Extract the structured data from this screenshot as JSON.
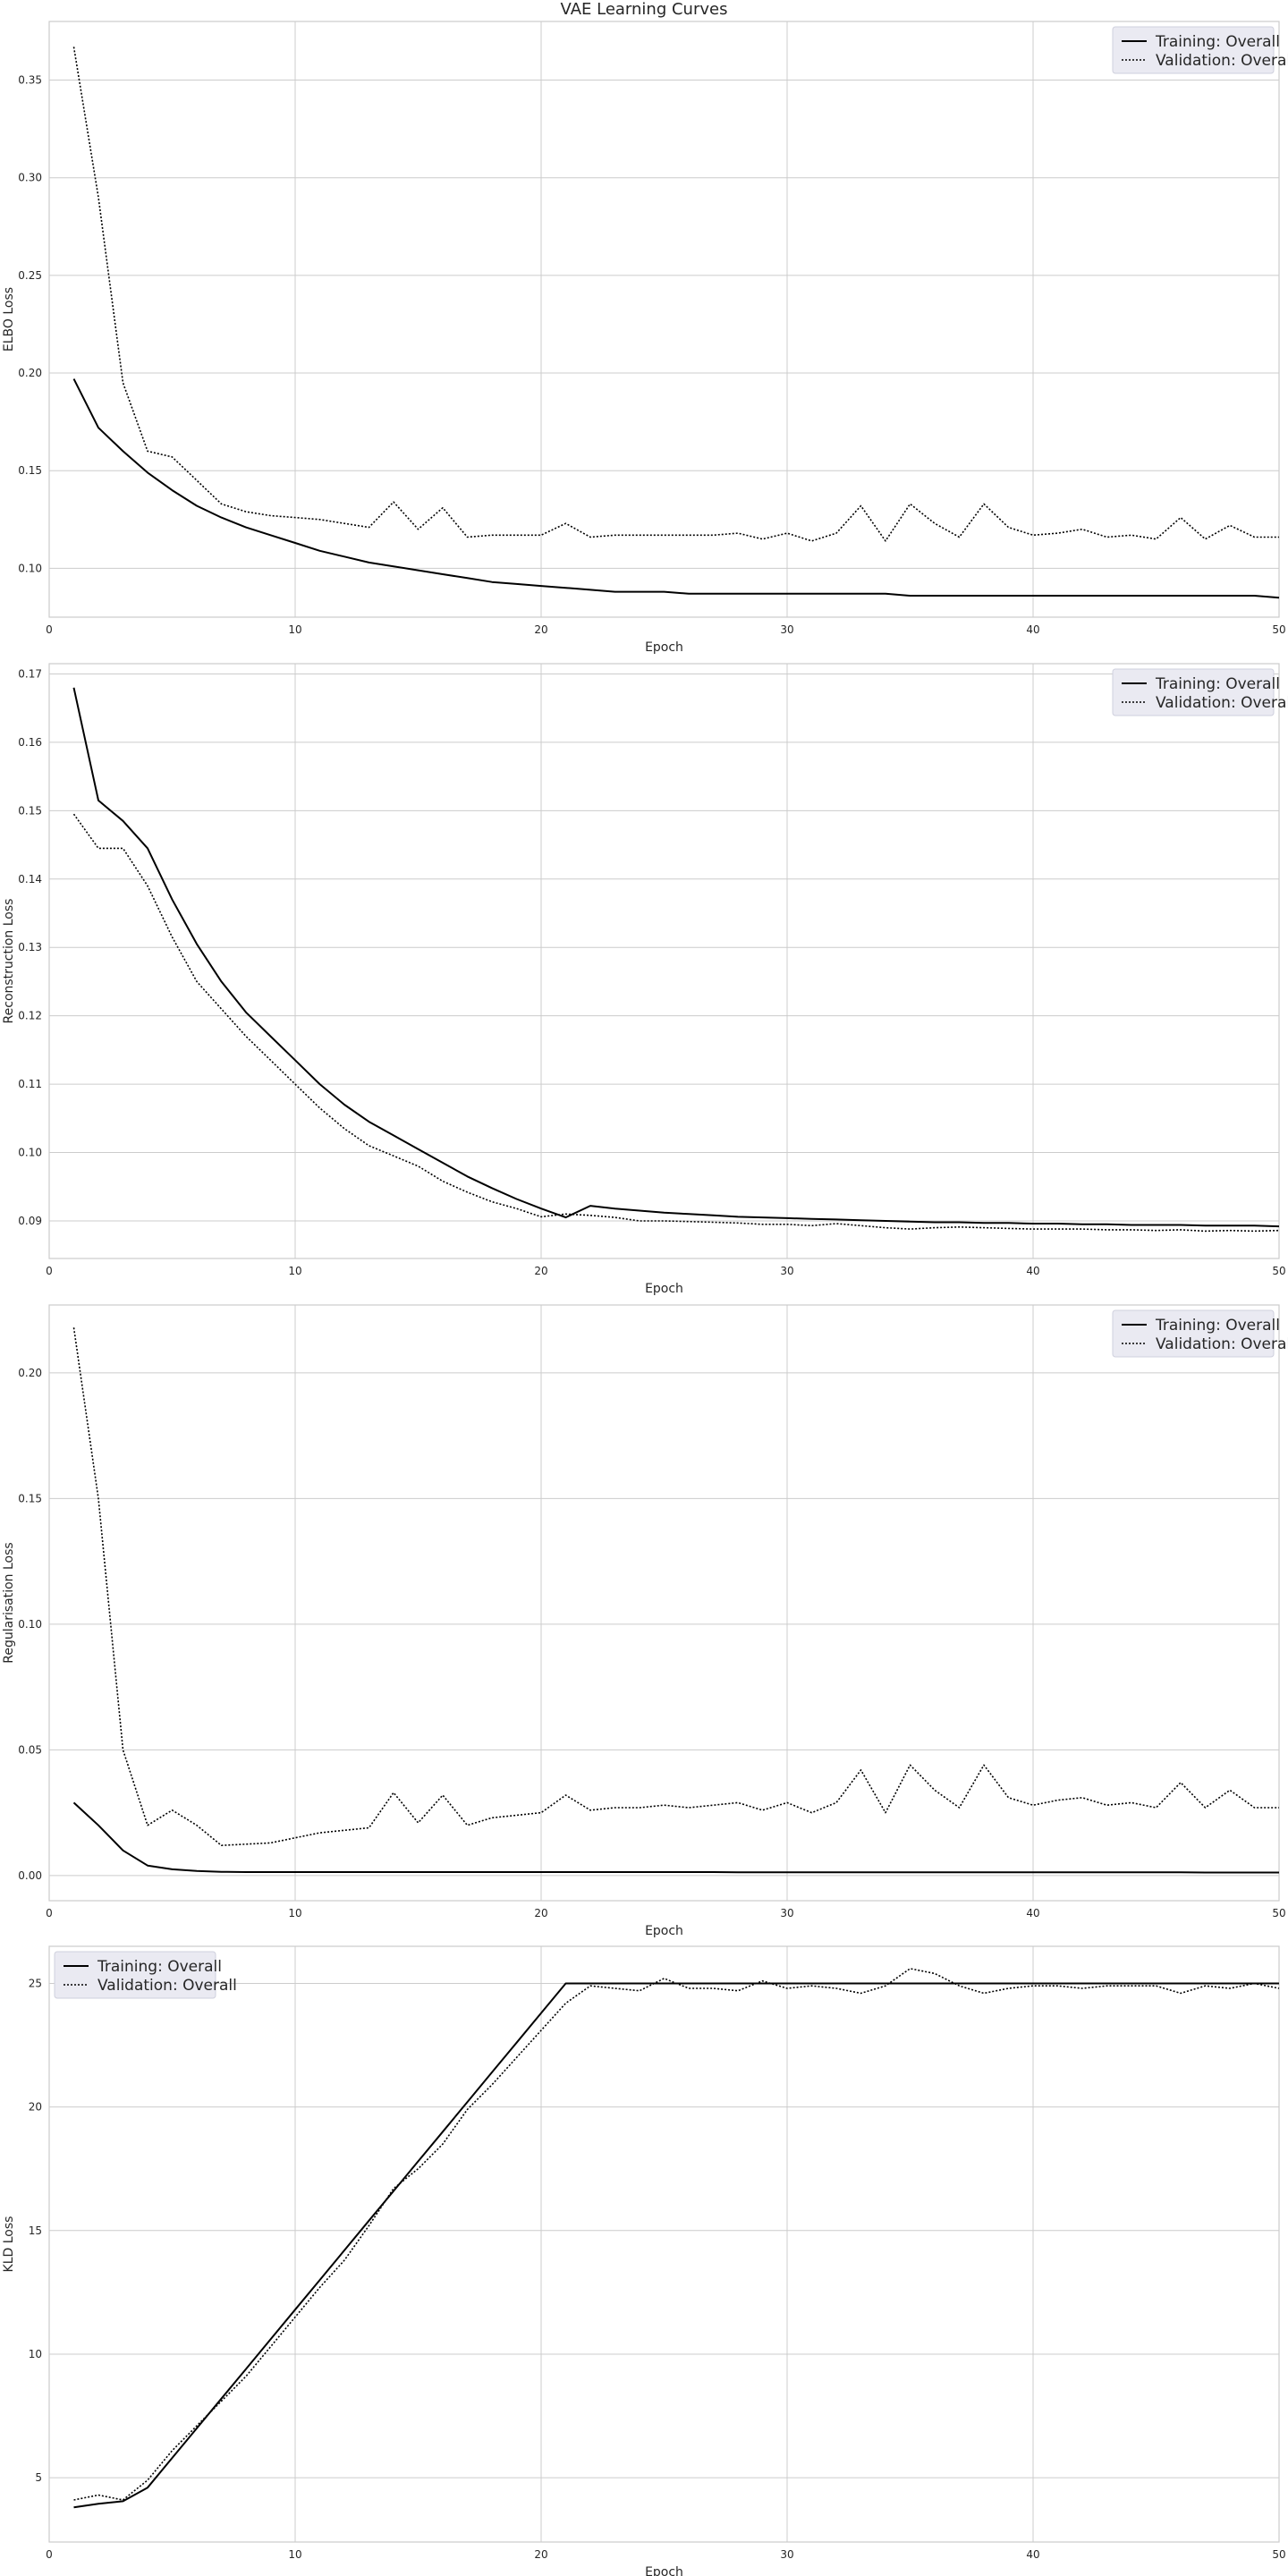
{
  "title": "VAE Learning Curves",
  "chart_data": [
    {
      "type": "line",
      "xlabel": "Epoch",
      "ylabel": "ELBO Loss",
      "xlim": [
        0,
        50
      ],
      "ylim": [
        0.075,
        0.38
      ],
      "xticks": [
        0,
        10,
        20,
        30,
        40,
        50
      ],
      "yticks": [
        0.1,
        0.15,
        0.2,
        0.25,
        0.3,
        0.35
      ],
      "tick_decimals": 2,
      "grid": true,
      "legend_position": "top-right",
      "x": [
        1,
        2,
        3,
        4,
        5,
        6,
        7,
        8,
        9,
        10,
        11,
        12,
        13,
        14,
        15,
        16,
        17,
        18,
        19,
        20,
        21,
        22,
        23,
        24,
        25,
        26,
        27,
        28,
        29,
        30,
        31,
        32,
        33,
        34,
        35,
        36,
        37,
        38,
        39,
        40,
        41,
        42,
        43,
        44,
        45,
        46,
        47,
        48,
        49,
        50
      ],
      "series": [
        {
          "name": "Training: Overall",
          "style": "solid",
          "values": [
            0.197,
            0.172,
            0.16,
            0.149,
            0.14,
            0.132,
            0.126,
            0.121,
            0.117,
            0.113,
            0.109,
            0.106,
            0.103,
            0.101,
            0.099,
            0.097,
            0.095,
            0.093,
            0.092,
            0.091,
            0.09,
            0.089,
            0.088,
            0.088,
            0.088,
            0.087,
            0.087,
            0.087,
            0.087,
            0.087,
            0.087,
            0.087,
            0.087,
            0.087,
            0.086,
            0.086,
            0.086,
            0.086,
            0.086,
            0.086,
            0.086,
            0.086,
            0.086,
            0.086,
            0.086,
            0.086,
            0.086,
            0.086,
            0.086,
            0.085
          ]
        },
        {
          "name": "Validation: Overall",
          "style": "dotted",
          "values": [
            0.367,
            0.29,
            0.195,
            0.16,
            0.157,
            0.145,
            0.133,
            0.129,
            0.127,
            0.126,
            0.125,
            0.123,
            0.121,
            0.134,
            0.12,
            0.131,
            0.116,
            0.117,
            0.117,
            0.117,
            0.123,
            0.116,
            0.117,
            0.117,
            0.117,
            0.117,
            0.117,
            0.118,
            0.115,
            0.118,
            0.114,
            0.118,
            0.132,
            0.114,
            0.133,
            0.123,
            0.116,
            0.133,
            0.121,
            0.117,
            0.118,
            0.12,
            0.116,
            0.117,
            0.115,
            0.126,
            0.115,
            0.122,
            0.116,
            0.116
          ]
        }
      ]
    },
    {
      "type": "line",
      "xlabel": "Epoch",
      "ylabel": "Reconstruction Loss",
      "xlim": [
        0,
        50
      ],
      "ylim": [
        0.0845,
        0.1715
      ],
      "xticks": [
        0,
        10,
        20,
        30,
        40,
        50
      ],
      "yticks": [
        0.09,
        0.1,
        0.11,
        0.12,
        0.13,
        0.14,
        0.15,
        0.16,
        0.17
      ],
      "tick_decimals": 2,
      "grid": true,
      "legend_position": "top-right",
      "x": [
        1,
        2,
        3,
        4,
        5,
        6,
        7,
        8,
        9,
        10,
        11,
        12,
        13,
        14,
        15,
        16,
        17,
        18,
        19,
        20,
        21,
        22,
        23,
        24,
        25,
        26,
        27,
        28,
        29,
        30,
        31,
        32,
        33,
        34,
        35,
        36,
        37,
        38,
        39,
        40,
        41,
        42,
        43,
        44,
        45,
        46,
        47,
        48,
        49,
        50
      ],
      "series": [
        {
          "name": "Training: Overall",
          "style": "solid",
          "values": [
            0.168,
            0.1515,
            0.1485,
            0.1445,
            0.137,
            0.1305,
            0.125,
            0.1205,
            0.117,
            0.1135,
            0.11,
            0.107,
            0.1045,
            0.1025,
            0.1005,
            0.0985,
            0.0965,
            0.0948,
            0.0932,
            0.0918,
            0.0905,
            0.0922,
            0.0918,
            0.0915,
            0.0912,
            0.091,
            0.0908,
            0.0906,
            0.0905,
            0.0904,
            0.0903,
            0.0902,
            0.0901,
            0.09,
            0.0899,
            0.0898,
            0.0898,
            0.0897,
            0.0897,
            0.0896,
            0.0896,
            0.0895,
            0.0895,
            0.0894,
            0.0894,
            0.0894,
            0.0893,
            0.0893,
            0.0893,
            0.0892
          ]
        },
        {
          "name": "Validation: Overall",
          "style": "dotted",
          "values": [
            0.1495,
            0.1445,
            0.1445,
            0.139,
            0.1315,
            0.125,
            0.121,
            0.117,
            0.1135,
            0.11,
            0.1065,
            0.1035,
            0.101,
            0.0995,
            0.098,
            0.0958,
            0.0942,
            0.0928,
            0.0918,
            0.0906,
            0.091,
            0.0908,
            0.0905,
            0.09,
            0.09,
            0.0899,
            0.0898,
            0.0897,
            0.0895,
            0.0895,
            0.0893,
            0.0896,
            0.0893,
            0.089,
            0.0888,
            0.089,
            0.0891,
            0.089,
            0.0889,
            0.0888,
            0.0888,
            0.0888,
            0.0887,
            0.0887,
            0.0886,
            0.0887,
            0.0885,
            0.0886,
            0.0885,
            0.0886
          ]
        }
      ]
    },
    {
      "type": "line",
      "xlabel": "Epoch",
      "ylabel": "Regularisation Loss",
      "xlim": [
        0,
        50
      ],
      "ylim": [
        -0.01,
        0.227
      ],
      "xticks": [
        0,
        10,
        20,
        30,
        40,
        50
      ],
      "yticks": [
        0.0,
        0.05,
        0.1,
        0.15,
        0.2
      ],
      "tick_decimals": 2,
      "grid": true,
      "legend_position": "top-right",
      "x": [
        1,
        2,
        3,
        4,
        5,
        6,
        7,
        8,
        9,
        10,
        11,
        12,
        13,
        14,
        15,
        16,
        17,
        18,
        19,
        20,
        21,
        22,
        23,
        24,
        25,
        26,
        27,
        28,
        29,
        30,
        31,
        32,
        33,
        34,
        35,
        36,
        37,
        38,
        39,
        40,
        41,
        42,
        43,
        44,
        45,
        46,
        47,
        48,
        49,
        50
      ],
      "series": [
        {
          "name": "Training: Overall",
          "style": "solid",
          "values": [
            0.029,
            0.02,
            0.01,
            0.004,
            0.0025,
            0.0018,
            0.0015,
            0.0014,
            0.0014,
            0.0014,
            0.0014,
            0.0014,
            0.0014,
            0.0014,
            0.0014,
            0.0014,
            0.0014,
            0.0014,
            0.0014,
            0.0014,
            0.0014,
            0.0014,
            0.0014,
            0.0014,
            0.0014,
            0.0014,
            0.0014,
            0.0013,
            0.0013,
            0.0013,
            0.0013,
            0.0013,
            0.0013,
            0.0013,
            0.0013,
            0.0013,
            0.0013,
            0.0013,
            0.0013,
            0.0013,
            0.0013,
            0.0013,
            0.0013,
            0.0013,
            0.0013,
            0.0013,
            0.0012,
            0.0012,
            0.0012,
            0.0012
          ]
        },
        {
          "name": "Validation: Overall",
          "style": "dotted",
          "values": [
            0.218,
            0.15,
            0.05,
            0.02,
            0.026,
            0.02,
            0.012,
            0.0125,
            0.013,
            0.015,
            0.017,
            0.018,
            0.019,
            0.033,
            0.021,
            0.032,
            0.02,
            0.023,
            0.024,
            0.025,
            0.032,
            0.026,
            0.027,
            0.027,
            0.028,
            0.027,
            0.028,
            0.029,
            0.026,
            0.029,
            0.025,
            0.029,
            0.042,
            0.025,
            0.044,
            0.034,
            0.027,
            0.044,
            0.031,
            0.028,
            0.03,
            0.031,
            0.028,
            0.029,
            0.027,
            0.037,
            0.027,
            0.034,
            0.027,
            0.027
          ]
        }
      ]
    },
    {
      "type": "line",
      "xlabel": "Epoch",
      "ylabel": "KLD Loss",
      "xlim": [
        0,
        50
      ],
      "ylim": [
        2.4,
        26.5
      ],
      "xticks": [
        0,
        10,
        20,
        30,
        40,
        50
      ],
      "yticks": [
        5,
        10,
        15,
        20,
        25
      ],
      "tick_decimals": 0,
      "grid": true,
      "legend_position": "top-left",
      "x": [
        1,
        2,
        3,
        4,
        5,
        6,
        7,
        8,
        9,
        10,
        11,
        12,
        13,
        14,
        15,
        16,
        17,
        18,
        19,
        20,
        21,
        22,
        23,
        24,
        25,
        26,
        27,
        28,
        29,
        30,
        31,
        32,
        33,
        34,
        35,
        36,
        37,
        38,
        39,
        40,
        41,
        42,
        43,
        44,
        45,
        46,
        47,
        48,
        49,
        50
      ],
      "series": [
        {
          "name": "Training: Overall",
          "style": "solid",
          "values": [
            3.8,
            3.95,
            4.05,
            4.6,
            5.8,
            7.0,
            8.2,
            9.4,
            10.6,
            11.8,
            13.0,
            14.2,
            15.4,
            16.6,
            17.8,
            19.0,
            20.2,
            21.4,
            22.6,
            23.8,
            25.0,
            25.0,
            25.0,
            25.0,
            25.0,
            25.0,
            25.0,
            25.0,
            25.0,
            25.0,
            25.0,
            25.0,
            25.0,
            25.0,
            25.0,
            25.0,
            25.0,
            25.0,
            25.0,
            25.0,
            25.0,
            25.0,
            25.0,
            25.0,
            25.0,
            25.0,
            25.0,
            25.0,
            25.0,
            25.0
          ]
        },
        {
          "name": "Validation: Overall",
          "style": "dotted",
          "values": [
            4.1,
            4.3,
            4.1,
            4.9,
            6.1,
            7.1,
            8.1,
            9.1,
            10.3,
            11.5,
            12.7,
            13.8,
            15.2,
            16.7,
            17.5,
            18.5,
            19.9,
            20.9,
            22.0,
            23.1,
            24.2,
            24.9,
            24.8,
            24.7,
            25.2,
            24.8,
            24.8,
            24.7,
            25.1,
            24.8,
            24.9,
            24.8,
            24.6,
            24.9,
            25.6,
            25.4,
            24.9,
            24.6,
            24.8,
            24.9,
            24.9,
            24.8,
            24.9,
            24.9,
            24.9,
            24.6,
            24.9,
            24.8,
            25.0,
            24.8
          ]
        }
      ]
    }
  ]
}
